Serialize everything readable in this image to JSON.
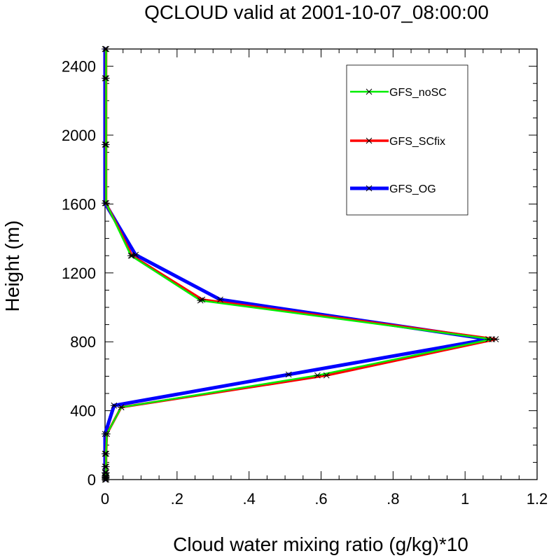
{
  "chart_data": {
    "type": "line",
    "title": "QCLOUD valid at 2001-10-07_08:00:00",
    "xlabel": "Cloud water mixing ratio (g/kg)*10",
    "ylabel": "Height (m)",
    "xlim": [
      0,
      1.2
    ],
    "ylim": [
      0,
      2500
    ],
    "x_ticks": [
      0,
      0.2,
      0.4,
      0.6,
      0.8,
      1.0,
      1.2
    ],
    "x_tick_labels": [
      "0",
      ".2",
      ".4",
      ".6",
      ".8",
      "1",
      "1.2"
    ],
    "y_ticks": [
      0,
      400,
      800,
      1200,
      1600,
      2000,
      2400
    ],
    "y_tick_labels": [
      "0",
      "400",
      "800",
      "1200",
      "1600",
      "2000",
      "2400"
    ],
    "grid": false,
    "legend_position": "top-right",
    "series": [
      {
        "name": "GFS_OG",
        "color": "#0000ff",
        "points": [
          [
            0.0,
            0
          ],
          [
            0.0,
            10
          ],
          [
            0.0,
            20
          ],
          [
            0.0,
            40
          ],
          [
            0.0,
            75
          ],
          [
            0.0,
            150
          ],
          [
            0.0,
            265
          ],
          [
            0.025,
            430
          ],
          [
            0.51,
            610
          ],
          [
            1.065,
            815
          ],
          [
            0.32,
            1045
          ],
          [
            0.085,
            1305
          ],
          [
            0.0,
            1605
          ],
          [
            0.0,
            1945
          ],
          [
            0.0,
            2330
          ],
          [
            0.0,
            2500
          ]
        ]
      },
      {
        "name": "GFS_SCfix",
        "color": "#ff0000",
        "points": [
          [
            0.003,
            0
          ],
          [
            0.003,
            10
          ],
          [
            0.003,
            20
          ],
          [
            0.003,
            40
          ],
          [
            0.003,
            75
          ],
          [
            0.003,
            150
          ],
          [
            0.005,
            265
          ],
          [
            0.045,
            420
          ],
          [
            0.615,
            605
          ],
          [
            1.085,
            815
          ],
          [
            0.27,
            1045
          ],
          [
            0.075,
            1300
          ],
          [
            0.003,
            1605
          ],
          [
            0.003,
            1945
          ],
          [
            0.003,
            2330
          ],
          [
            0.003,
            2500
          ]
        ]
      },
      {
        "name": "GFS_noSC",
        "color": "#00ee00",
        "points": [
          [
            0.003,
            0
          ],
          [
            0.003,
            10
          ],
          [
            0.003,
            20
          ],
          [
            0.003,
            40
          ],
          [
            0.003,
            75
          ],
          [
            0.003,
            150
          ],
          [
            0.005,
            265
          ],
          [
            0.045,
            420
          ],
          [
            0.59,
            605
          ],
          [
            1.075,
            815
          ],
          [
            0.265,
            1040
          ],
          [
            0.072,
            1300
          ],
          [
            0.003,
            1605
          ],
          [
            0.003,
            1945
          ],
          [
            0.003,
            2330
          ],
          [
            0.003,
            2500
          ]
        ]
      }
    ],
    "legend": [
      "GFS_noSC",
      "GFS_SCfix",
      "GFS_OG"
    ]
  }
}
